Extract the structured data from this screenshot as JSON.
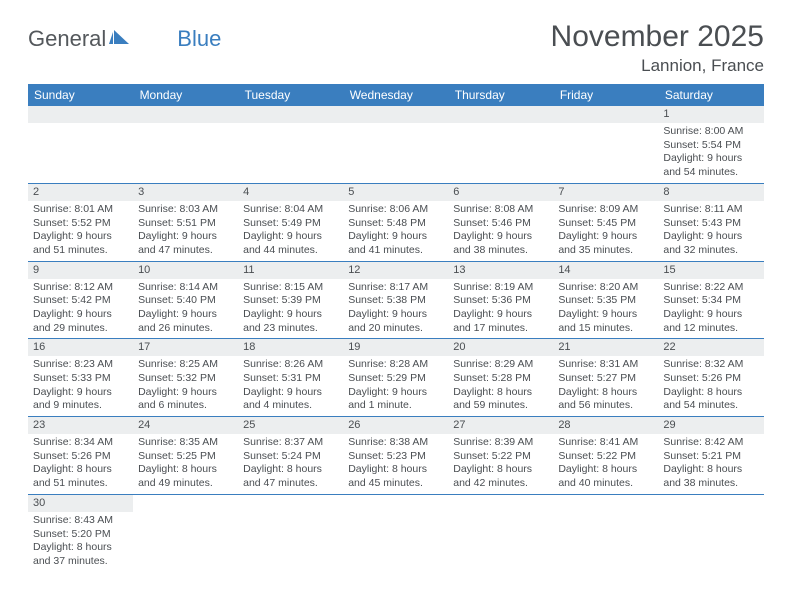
{
  "logo": {
    "text1": "General",
    "text2": "Blue"
  },
  "title": "November 2025",
  "location": "Lannion, France",
  "colors": {
    "header_bg": "#3a7ebf",
    "header_text": "#ffffff",
    "daynum_bg": "#eceeef",
    "text": "#4a4e52",
    "rule": "#3a7ebf"
  },
  "fonts": {
    "title_size": 30,
    "location_size": 17,
    "weekday_size": 12,
    "daynum_size": 11,
    "body_size": 10.5
  },
  "weekdays": [
    "Sunday",
    "Monday",
    "Tuesday",
    "Wednesday",
    "Thursday",
    "Friday",
    "Saturday"
  ],
  "weeks": [
    [
      null,
      null,
      null,
      null,
      null,
      null,
      {
        "n": "1",
        "sr": "Sunrise: 8:00 AM",
        "ss": "Sunset: 5:54 PM",
        "dl": "Daylight: 9 hours and 54 minutes."
      }
    ],
    [
      {
        "n": "2",
        "sr": "Sunrise: 8:01 AM",
        "ss": "Sunset: 5:52 PM",
        "dl": "Daylight: 9 hours and 51 minutes."
      },
      {
        "n": "3",
        "sr": "Sunrise: 8:03 AM",
        "ss": "Sunset: 5:51 PM",
        "dl": "Daylight: 9 hours and 47 minutes."
      },
      {
        "n": "4",
        "sr": "Sunrise: 8:04 AM",
        "ss": "Sunset: 5:49 PM",
        "dl": "Daylight: 9 hours and 44 minutes."
      },
      {
        "n": "5",
        "sr": "Sunrise: 8:06 AM",
        "ss": "Sunset: 5:48 PM",
        "dl": "Daylight: 9 hours and 41 minutes."
      },
      {
        "n": "6",
        "sr": "Sunrise: 8:08 AM",
        "ss": "Sunset: 5:46 PM",
        "dl": "Daylight: 9 hours and 38 minutes."
      },
      {
        "n": "7",
        "sr": "Sunrise: 8:09 AM",
        "ss": "Sunset: 5:45 PM",
        "dl": "Daylight: 9 hours and 35 minutes."
      },
      {
        "n": "8",
        "sr": "Sunrise: 8:11 AM",
        "ss": "Sunset: 5:43 PM",
        "dl": "Daylight: 9 hours and 32 minutes."
      }
    ],
    [
      {
        "n": "9",
        "sr": "Sunrise: 8:12 AM",
        "ss": "Sunset: 5:42 PM",
        "dl": "Daylight: 9 hours and 29 minutes."
      },
      {
        "n": "10",
        "sr": "Sunrise: 8:14 AM",
        "ss": "Sunset: 5:40 PM",
        "dl": "Daylight: 9 hours and 26 minutes."
      },
      {
        "n": "11",
        "sr": "Sunrise: 8:15 AM",
        "ss": "Sunset: 5:39 PM",
        "dl": "Daylight: 9 hours and 23 minutes."
      },
      {
        "n": "12",
        "sr": "Sunrise: 8:17 AM",
        "ss": "Sunset: 5:38 PM",
        "dl": "Daylight: 9 hours and 20 minutes."
      },
      {
        "n": "13",
        "sr": "Sunrise: 8:19 AM",
        "ss": "Sunset: 5:36 PM",
        "dl": "Daylight: 9 hours and 17 minutes."
      },
      {
        "n": "14",
        "sr": "Sunrise: 8:20 AM",
        "ss": "Sunset: 5:35 PM",
        "dl": "Daylight: 9 hours and 15 minutes."
      },
      {
        "n": "15",
        "sr": "Sunrise: 8:22 AM",
        "ss": "Sunset: 5:34 PM",
        "dl": "Daylight: 9 hours and 12 minutes."
      }
    ],
    [
      {
        "n": "16",
        "sr": "Sunrise: 8:23 AM",
        "ss": "Sunset: 5:33 PM",
        "dl": "Daylight: 9 hours and 9 minutes."
      },
      {
        "n": "17",
        "sr": "Sunrise: 8:25 AM",
        "ss": "Sunset: 5:32 PM",
        "dl": "Daylight: 9 hours and 6 minutes."
      },
      {
        "n": "18",
        "sr": "Sunrise: 8:26 AM",
        "ss": "Sunset: 5:31 PM",
        "dl": "Daylight: 9 hours and 4 minutes."
      },
      {
        "n": "19",
        "sr": "Sunrise: 8:28 AM",
        "ss": "Sunset: 5:29 PM",
        "dl": "Daylight: 9 hours and 1 minute."
      },
      {
        "n": "20",
        "sr": "Sunrise: 8:29 AM",
        "ss": "Sunset: 5:28 PM",
        "dl": "Daylight: 8 hours and 59 minutes."
      },
      {
        "n": "21",
        "sr": "Sunrise: 8:31 AM",
        "ss": "Sunset: 5:27 PM",
        "dl": "Daylight: 8 hours and 56 minutes."
      },
      {
        "n": "22",
        "sr": "Sunrise: 8:32 AM",
        "ss": "Sunset: 5:26 PM",
        "dl": "Daylight: 8 hours and 54 minutes."
      }
    ],
    [
      {
        "n": "23",
        "sr": "Sunrise: 8:34 AM",
        "ss": "Sunset: 5:26 PM",
        "dl": "Daylight: 8 hours and 51 minutes."
      },
      {
        "n": "24",
        "sr": "Sunrise: 8:35 AM",
        "ss": "Sunset: 5:25 PM",
        "dl": "Daylight: 8 hours and 49 minutes."
      },
      {
        "n": "25",
        "sr": "Sunrise: 8:37 AM",
        "ss": "Sunset: 5:24 PM",
        "dl": "Daylight: 8 hours and 47 minutes."
      },
      {
        "n": "26",
        "sr": "Sunrise: 8:38 AM",
        "ss": "Sunset: 5:23 PM",
        "dl": "Daylight: 8 hours and 45 minutes."
      },
      {
        "n": "27",
        "sr": "Sunrise: 8:39 AM",
        "ss": "Sunset: 5:22 PM",
        "dl": "Daylight: 8 hours and 42 minutes."
      },
      {
        "n": "28",
        "sr": "Sunrise: 8:41 AM",
        "ss": "Sunset: 5:22 PM",
        "dl": "Daylight: 8 hours and 40 minutes."
      },
      {
        "n": "29",
        "sr": "Sunrise: 8:42 AM",
        "ss": "Sunset: 5:21 PM",
        "dl": "Daylight: 8 hours and 38 minutes."
      }
    ],
    [
      {
        "n": "30",
        "sr": "Sunrise: 8:43 AM",
        "ss": "Sunset: 5:20 PM",
        "dl": "Daylight: 8 hours and 37 minutes."
      },
      null,
      null,
      null,
      null,
      null,
      null
    ]
  ]
}
